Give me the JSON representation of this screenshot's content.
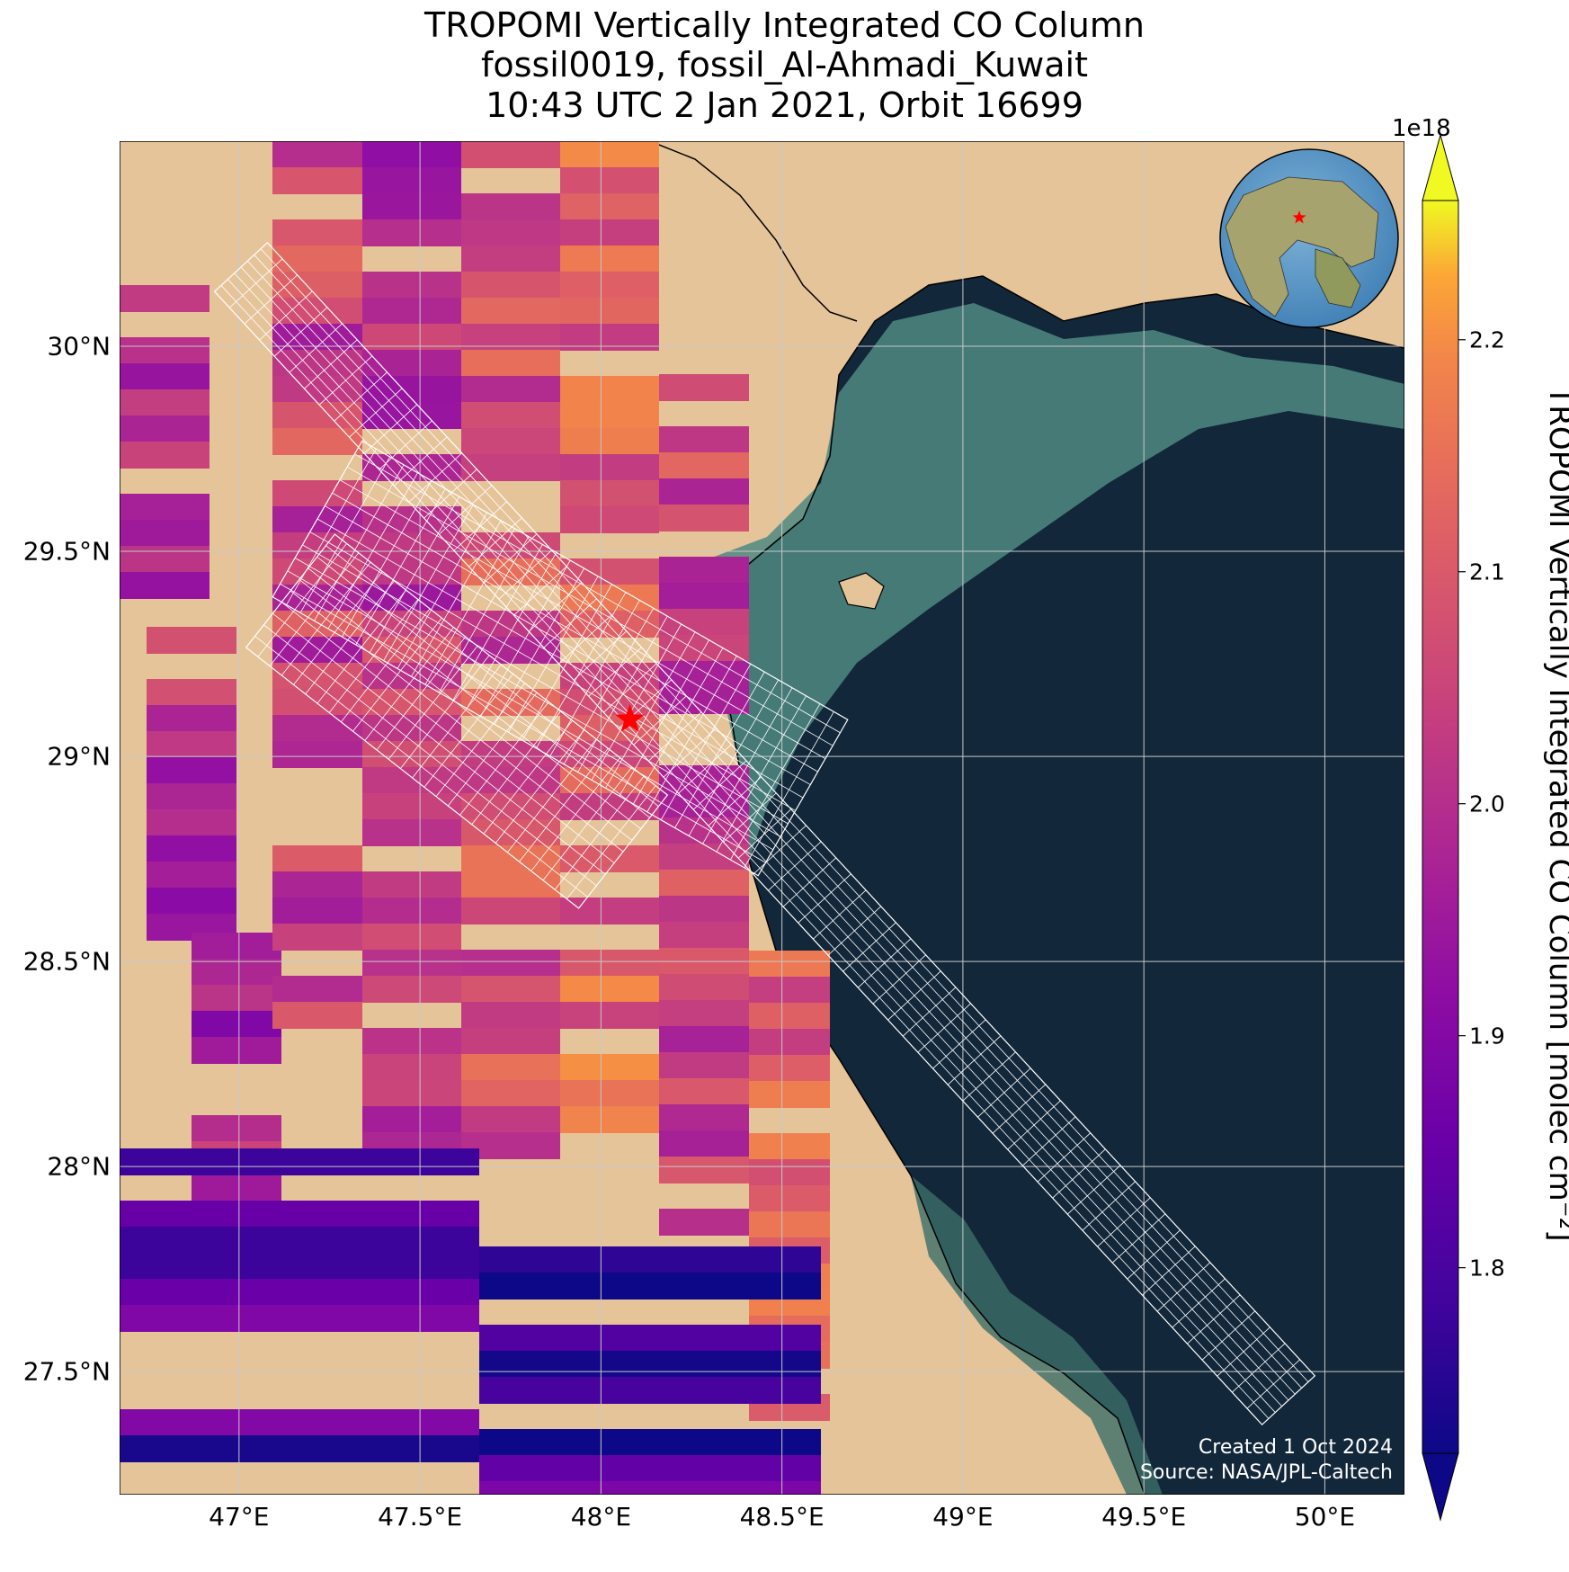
{
  "title": {
    "line1": "TROPOMI Vertically Integrated CO Column",
    "line2": "fossil0019, fossil_Al-Ahmadi_Kuwait",
    "line3": "10:43 UTC 2 Jan 2021, Orbit 16699"
  },
  "map": {
    "lon_range": [
      46.67,
      50.22
    ],
    "lat_range": [
      27.2,
      30.5
    ],
    "lon_ticks": [
      {
        "value": 47.0,
        "label": "47°E"
      },
      {
        "value": 47.5,
        "label": "47.5°E"
      },
      {
        "value": 48.0,
        "label": "48°E"
      },
      {
        "value": 48.5,
        "label": "48.5°E"
      },
      {
        "value": 49.0,
        "label": "49°E"
      },
      {
        "value": 49.5,
        "label": "49.5°E"
      },
      {
        "value": 50.0,
        "label": "50°E"
      }
    ],
    "lat_ticks": [
      {
        "value": 30.0,
        "label": "30°N"
      },
      {
        "value": 29.5,
        "label": "29.5°N"
      },
      {
        "value": 29.0,
        "label": "29°N"
      },
      {
        "value": 28.5,
        "label": "28.5°N"
      },
      {
        "value": 28.0,
        "label": "28°N"
      },
      {
        "value": 27.5,
        "label": "27.5°N"
      }
    ],
    "grid": true,
    "site_marker": {
      "lon": 48.08,
      "lat": 29.09,
      "color": "#ff0000",
      "shape": "star"
    },
    "land_color": "#e6c49a",
    "sea_color": "#12273a",
    "shallow_water_color": "#4f8a82",
    "inset_globe": {
      "position": "top-right",
      "marker_color": "#ff0000"
    }
  },
  "colorbar": {
    "label": "TROPOMI Vertically Integrated CO Column [molec cm⁻²]",
    "exponent": "1e18",
    "colormap": "plasma",
    "range": [
      1.72,
      2.26
    ],
    "ticks": [
      {
        "value": 1.8,
        "label": "1.8"
      },
      {
        "value": 1.9,
        "label": "1.9"
      },
      {
        "value": 2.0,
        "label": "2.0"
      },
      {
        "value": 2.1,
        "label": "2.1"
      },
      {
        "value": 2.2,
        "label": "2.2"
      }
    ],
    "extend": "both"
  },
  "credits": {
    "created": "Created 1 Oct 2024",
    "source": "Source: NASA/JPL-Caltech"
  }
}
